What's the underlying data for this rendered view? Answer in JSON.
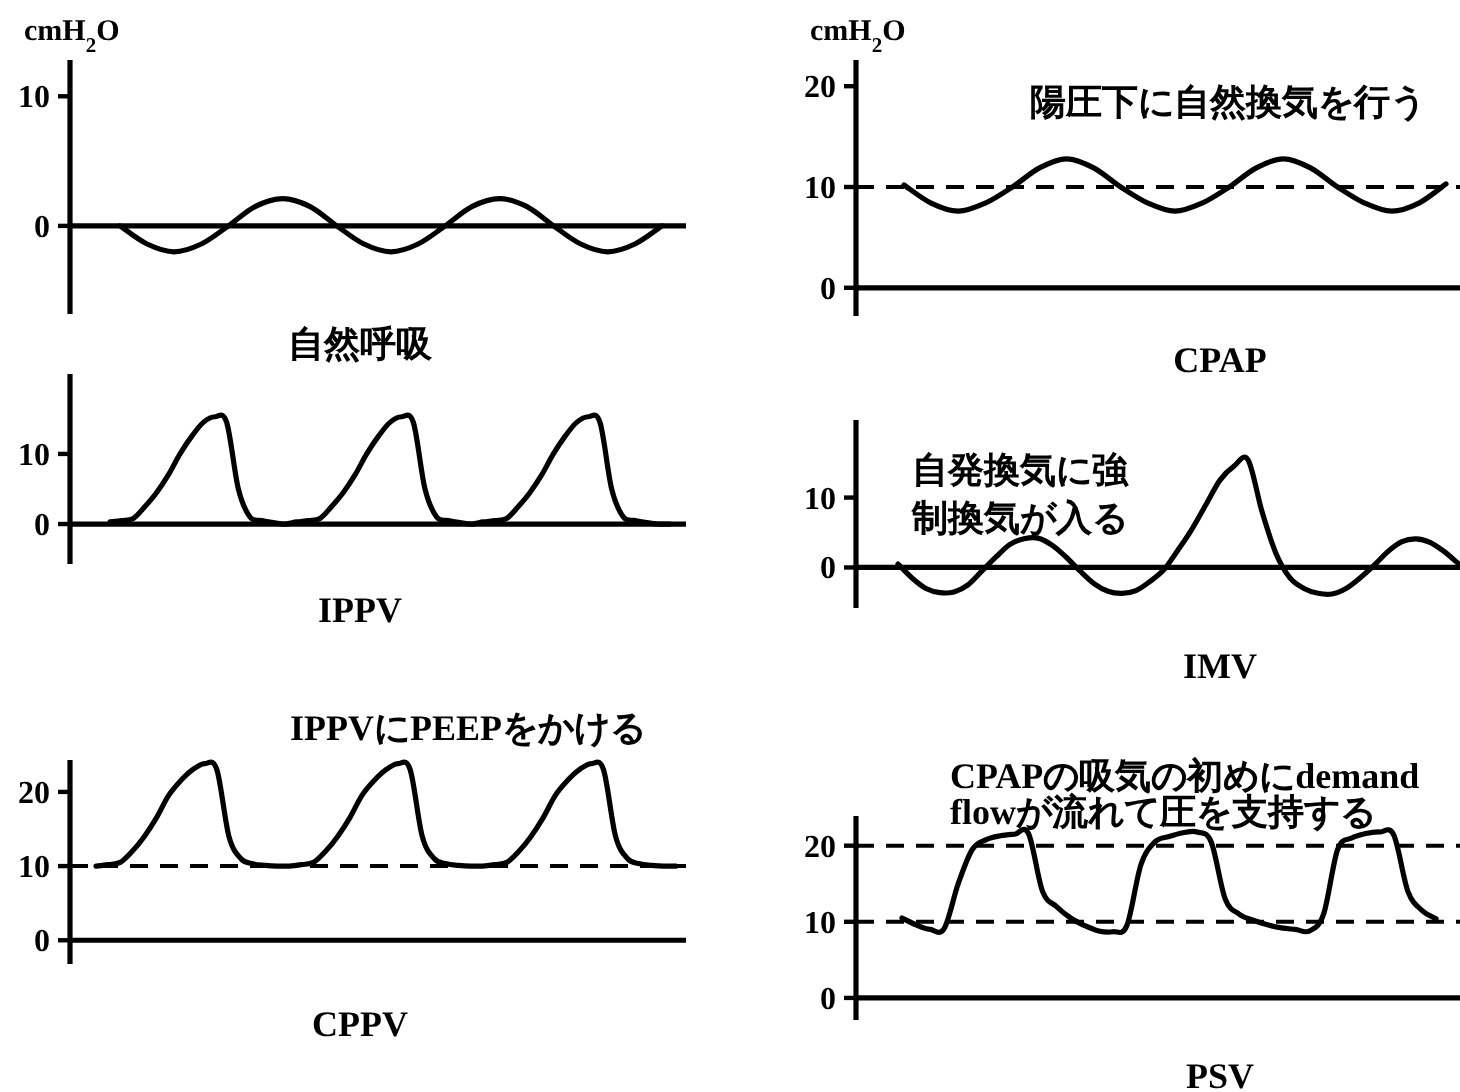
{
  "chart_data": [
    {
      "type": "line",
      "title": "自然呼吸",
      "ylabel": "cmH$_{2}$O",
      "categories": [
        null,
        null,
        null,
        null,
        null,
        null,
        null,
        null,
        null,
        null,
        null,
        null,
        null,
        null,
        null,
        null,
        null,
        null,
        null,
        null,
        null
      ],
      "series": [
        {
          "color": "#000000",
          "values": [
            0,
            -1.4,
            -2,
            -1.4,
            0,
            1.5,
            2.1,
            1.5,
            0,
            -1.4,
            -2,
            -1.4,
            0,
            1.5,
            2.1,
            1.5,
            0,
            -1.4,
            -2,
            -1.4,
            0
          ]
        }
      ],
      "ylim": [
        -6.8,
        12.8
      ],
      "yticks": [
        0,
        10
      ],
      "tick_labels": "y",
      "line_style": "solid"
    },
    {
      "type": "line",
      "title": "CPAP",
      "ylabel": "cmH$_{2}$O",
      "categories": [
        null,
        null,
        null,
        null,
        null,
        null,
        null,
        null,
        null,
        null,
        null,
        null,
        null,
        null,
        null,
        null,
        null,
        null,
        null,
        null,
        null
      ],
      "series": [
        {
          "color": "#000000",
          "values": [
            10.2,
            8.4,
            7.6,
            8.4,
            10,
            11.9,
            12.8,
            11.9,
            10,
            8.4,
            7.6,
            8.4,
            10,
            11.9,
            12.8,
            11.9,
            10,
            8.4,
            7.6,
            8.4,
            10.3
          ]
        }
      ],
      "ylim": [
        -2.8,
        22.6
      ],
      "yticks": [
        0,
        10,
        20
      ],
      "tick_labels": "y",
      "line_style": "solid",
      "ref_lines": [
        {
          "axis": "y",
          "value": 10,
          "line_style": "dashed"
        }
      ],
      "annotations": [
        "陽圧下に自然換気を行う"
      ]
    },
    {
      "type": "line",
      "title": "IPPV",
      "categories": [
        null,
        null,
        null,
        null,
        null,
        null,
        null,
        null,
        null,
        null,
        null,
        null,
        null,
        null,
        null,
        null,
        null,
        null,
        null,
        null,
        null,
        null,
        null,
        null,
        null,
        null,
        null,
        null,
        null,
        null,
        null,
        null,
        null,
        null,
        null,
        null,
        null,
        null,
        null,
        null,
        null,
        null,
        null,
        null,
        null,
        null,
        null,
        null,
        null
      ],
      "series": [
        {
          "color": "#000000",
          "values": [
            0.3,
            0.5,
            0.8,
            2.5,
            4.5,
            7,
            10,
            12.5,
            14.5,
            15.3,
            14.5,
            5,
            1,
            0.5,
            0.2,
            0,
            0.3,
            0.5,
            0.8,
            2.5,
            4.5,
            7,
            10,
            12.5,
            14.5,
            15.3,
            14.5,
            5,
            1,
            0.5,
            0.2,
            0,
            0.3,
            0.5,
            0.8,
            2.5,
            4.5,
            7,
            10,
            12.5,
            14.5,
            15.3,
            14.5,
            5,
            1,
            0.5,
            0.2,
            0,
            0
          ]
        }
      ],
      "ylim": [
        -5.7,
        21.4
      ],
      "yticks": [
        0,
        10
      ],
      "tick_labels": "y",
      "line_style": "solid"
    },
    {
      "type": "line",
      "title": "IMV",
      "categories": [
        null,
        null,
        null,
        null,
        null,
        null,
        null,
        null,
        null,
        null,
        null,
        null,
        null,
        null,
        null,
        null,
        null,
        null,
        null,
        null,
        null,
        null,
        null,
        null,
        null,
        null,
        null,
        null,
        null,
        null,
        null,
        null,
        null,
        null,
        null,
        null,
        null,
        null,
        null,
        null,
        null
      ],
      "series": [
        {
          "color": "#000000",
          "values": [
            0.5,
            -1.5,
            -3,
            -3.6,
            -3.5,
            -2.5,
            -0.5,
            1.5,
            3.3,
            4.1,
            4.2,
            3.2,
            1.5,
            -0.5,
            -2.3,
            -3.4,
            -3.7,
            -3.3,
            -2,
            -0.3,
            2.5,
            5.5,
            9,
            12.5,
            14.5,
            15.4,
            8,
            2,
            -1.5,
            -3,
            -3.7,
            -3.8,
            -3,
            -1.5,
            0.3,
            2.3,
            3.7,
            4.1,
            3.6,
            2.3,
            0.6
          ]
        }
      ],
      "ylim": [
        -5.8,
        21.1
      ],
      "yticks": [
        0,
        10
      ],
      "tick_labels": "y",
      "line_style": "solid",
      "annotations": [
        "自発換気に強制換気が入る"
      ]
    },
    {
      "type": "line",
      "title": "CPPV",
      "categories": [
        null,
        null,
        null,
        null,
        null,
        null,
        null,
        null,
        null,
        null,
        null,
        null,
        null,
        null,
        null,
        null,
        null,
        null,
        null,
        null,
        null,
        null,
        null,
        null,
        null,
        null,
        null,
        null,
        null,
        null,
        null,
        null,
        null,
        null,
        null,
        null,
        null,
        null,
        null,
        null,
        null,
        null,
        null,
        null,
        null,
        null,
        null,
        null,
        null
      ],
      "series": [
        {
          "color": "#000000",
          "values": [
            10,
            10.2,
            10.5,
            12,
            14,
            16.5,
            19.5,
            21.5,
            23,
            23.8,
            23,
            14,
            11,
            10.3,
            10.1,
            10,
            10,
            10.2,
            10.5,
            12,
            14,
            16.5,
            19.5,
            21.5,
            23,
            23.8,
            23,
            14,
            11,
            10.3,
            10.1,
            10,
            10,
            10.2,
            10.5,
            12,
            14,
            16.5,
            19.5,
            21.5,
            23,
            23.8,
            23,
            14,
            11,
            10.3,
            10.1,
            10,
            10
          ]
        }
      ],
      "ylim": [
        -3.2,
        24.3
      ],
      "yticks": [
        0,
        10,
        20
      ],
      "tick_labels": "y",
      "line_style": "solid",
      "ref_lines": [
        {
          "axis": "y",
          "value": 10,
          "line_style": "dashed"
        }
      ],
      "annotations": [
        "IPPVにPEEPをかける"
      ]
    },
    {
      "type": "line",
      "title": "PSV",
      "categories": [
        null,
        null,
        null,
        null,
        null,
        null,
        null,
        null,
        null,
        null,
        null,
        null,
        null,
        null,
        null,
        null,
        null,
        null,
        null,
        null,
        null,
        null,
        null,
        null,
        null,
        null,
        null,
        null,
        null,
        null,
        null,
        null,
        null,
        null,
        null,
        null,
        null,
        null,
        null
      ],
      "series": [
        {
          "color": "#000000",
          "values": [
            10.5,
            9.6,
            9,
            9.1,
            15,
            19.5,
            20.8,
            21.3,
            21.5,
            21.6,
            14,
            12,
            10.5,
            9.5,
            8.8,
            8.7,
            9.5,
            17.5,
            20.5,
            21.2,
            21.7,
            21.8,
            20.5,
            13,
            11,
            10.2,
            9.6,
            9.2,
            9,
            8.8,
            11,
            19.5,
            21,
            21.6,
            21.8,
            21.4,
            14,
            11.5,
            10.4
          ]
        }
      ],
      "ylim": [
        -2.9,
        23.9
      ],
      "yticks": [
        0,
        10,
        20
      ],
      "tick_labels": "y",
      "line_style": "solid",
      "ref_lines": [
        {
          "axis": "y",
          "value": 10,
          "line_style": "dashed"
        },
        {
          "axis": "y",
          "value": 20,
          "line_style": "dashed"
        }
      ],
      "annotations": [
        "CPAPの吸気の初めにdemand flowが流れて圧を支持する"
      ]
    }
  ]
}
